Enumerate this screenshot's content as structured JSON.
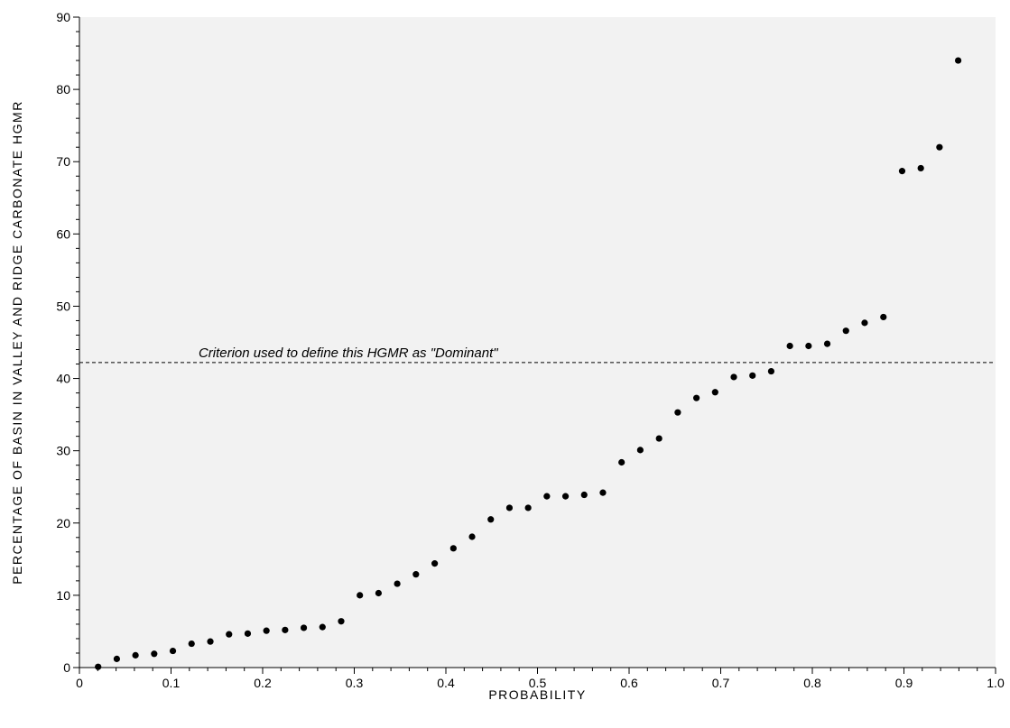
{
  "chart_data": {
    "type": "scatter",
    "title": "",
    "xlabel": "PROBABILITY",
    "ylabel": "PERCENTAGE OF BASIN IN VALLEY AND RIDGE CARBONATE HGMR",
    "xlim": [
      0,
      1.0
    ],
    "ylim": [
      0,
      90
    ],
    "x_ticks": [
      0,
      0.1,
      0.2,
      0.3,
      0.4,
      0.5,
      0.6,
      0.7,
      0.8,
      0.9,
      1.0
    ],
    "x_tick_labels": [
      "0",
      "0.1",
      "0.2",
      "0.3",
      "0.4",
      "0.5",
      "0.6",
      "0.7",
      "0.8",
      "0.9",
      "1.0"
    ],
    "y_ticks": [
      0,
      10,
      20,
      30,
      40,
      50,
      60,
      70,
      80,
      90
    ],
    "y_tick_labels": [
      "0",
      "10",
      "20",
      "30",
      "40",
      "50",
      "60",
      "70",
      "80",
      "90"
    ],
    "grid": false,
    "plot_background": "#f2f2f2",
    "marker_color": "#000000",
    "series": [
      {
        "points": [
          [
            0.0204,
            0.1
          ],
          [
            0.0408,
            1.2
          ],
          [
            0.0612,
            1.7
          ],
          [
            0.0816,
            1.9
          ],
          [
            0.102,
            2.3
          ],
          [
            0.1224,
            3.3
          ],
          [
            0.1429,
            3.6
          ],
          [
            0.1633,
            4.6
          ],
          [
            0.1837,
            4.7
          ],
          [
            0.2041,
            5.1
          ],
          [
            0.2245,
            5.2
          ],
          [
            0.2449,
            5.5
          ],
          [
            0.2653,
            5.6
          ],
          [
            0.2857,
            6.4
          ],
          [
            0.3061,
            10.0
          ],
          [
            0.3265,
            10.3
          ],
          [
            0.3469,
            11.6
          ],
          [
            0.3673,
            12.9
          ],
          [
            0.3878,
            14.4
          ],
          [
            0.4082,
            16.5
          ],
          [
            0.4286,
            18.1
          ],
          [
            0.449,
            20.5
          ],
          [
            0.4694,
            22.1
          ],
          [
            0.4898,
            22.1
          ],
          [
            0.5102,
            23.7
          ],
          [
            0.5306,
            23.7
          ],
          [
            0.551,
            23.9
          ],
          [
            0.5714,
            24.2
          ],
          [
            0.5918,
            28.4
          ],
          [
            0.6122,
            30.1
          ],
          [
            0.6327,
            31.7
          ],
          [
            0.6531,
            35.3
          ],
          [
            0.6735,
            37.3
          ],
          [
            0.6939,
            38.1
          ],
          [
            0.7143,
            40.2
          ],
          [
            0.7347,
            40.4
          ],
          [
            0.7551,
            41.0
          ],
          [
            0.7755,
            44.5
          ],
          [
            0.7959,
            44.5
          ],
          [
            0.8163,
            44.8
          ],
          [
            0.8367,
            46.6
          ],
          [
            0.8571,
            47.7
          ],
          [
            0.8776,
            48.5
          ],
          [
            0.898,
            68.7
          ],
          [
            0.9184,
            69.1
          ],
          [
            0.9388,
            72.0
          ],
          [
            0.9592,
            84.0
          ]
        ]
      }
    ],
    "reference_line": {
      "y": 42.2,
      "style": "dashed",
      "label": "Criterion used to define this HGMR as \"Dominant\""
    }
  }
}
